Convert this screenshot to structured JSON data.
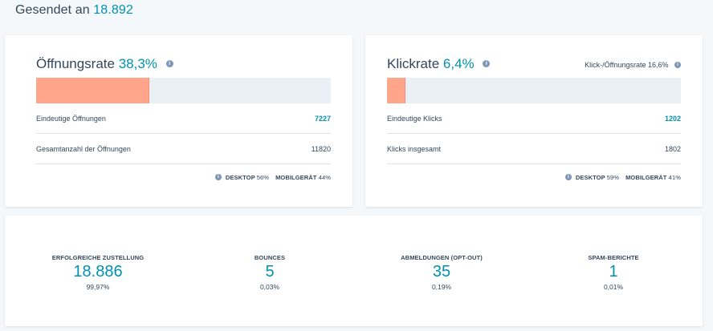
{
  "header": {
    "sent_label": "Gesendet an",
    "sent_count": "18.892"
  },
  "open_card": {
    "title": "Öffnungsrate",
    "rate": "38,3%",
    "bar_fill_fraction": 0.383,
    "bar_color": "#ffa68a",
    "unique_label": "Eindeutige Öffnungen",
    "unique_value": "7227",
    "total_label": "Gesamtanzahl der Öffnungen",
    "total_value": "11820",
    "desktop_label": "DESKTOP",
    "desktop_value": "56%",
    "mobile_label": "MOBILGERÄT",
    "mobile_value": "44%"
  },
  "click_card": {
    "title": "Klickrate",
    "rate": "6,4%",
    "bar_fill_fraction": 0.064,
    "ratio_label": "Klick-/Öffnungsrate 16,6%",
    "unique_label": "Eindeutige Klicks",
    "unique_value": "1202",
    "total_label": "Klicks insgesamt",
    "total_value": "1802",
    "desktop_label": "DESKTOP",
    "desktop_value": "59%",
    "mobile_label": "MOBILGERÄT",
    "mobile_value": "41%"
  },
  "stats": [
    {
      "label": "ERFOLGREICHE ZUSTELLUNG",
      "value": "18.886",
      "percent": "99,97%"
    },
    {
      "label": "BOUNCES",
      "value": "5",
      "percent": "0,03%"
    },
    {
      "label": "ABMELDUNGEN (OPT-OUT)",
      "value": "35",
      "percent": "0,19%"
    },
    {
      "label": "SPAM-BERICHTE",
      "value": "1",
      "percent": "0,01%"
    }
  ],
  "icons": {
    "info": "info-icon"
  },
  "colors": {
    "accent": "#0091ae",
    "text": "#33475b",
    "bar_track": "#eaf0f6",
    "bar_fill": "#ffa68a"
  }
}
